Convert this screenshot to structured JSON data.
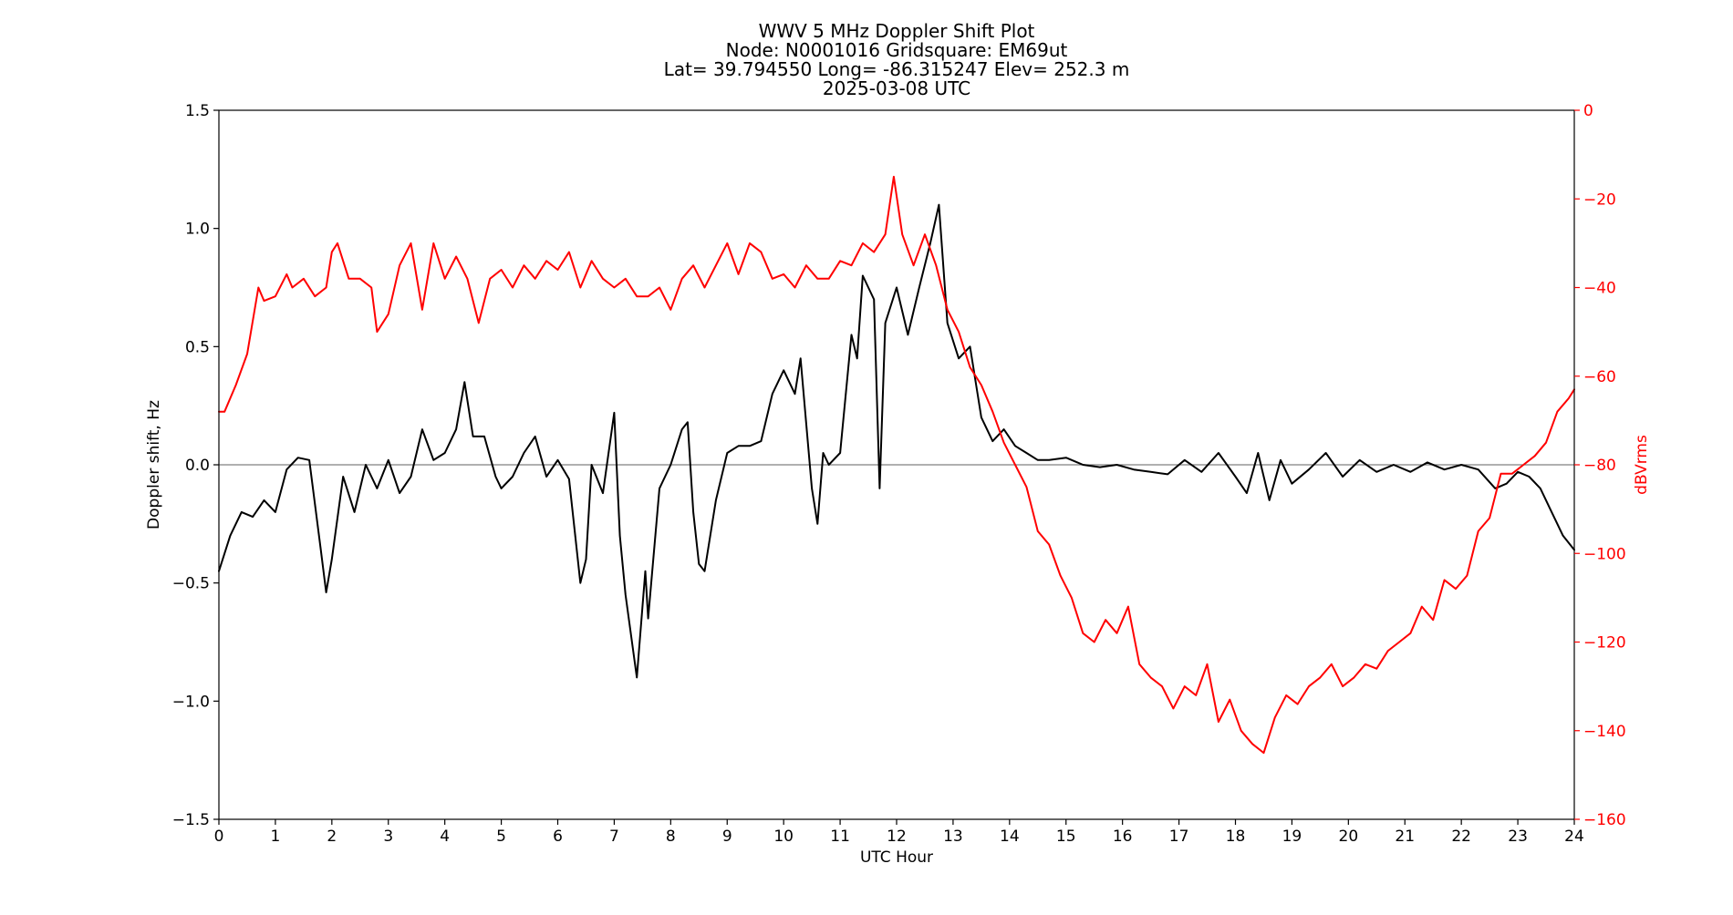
{
  "chart_data": {
    "type": "line",
    "title_lines": [
      "WWV 5 MHz Doppler Shift Plot",
      "Node:  N0001016     Gridsquare:  EM69ut",
      "Lat= 39.794550    Long= -86.315247    Elev= 252.3 m",
      "2025-03-08  UTC"
    ],
    "xlabel": "UTC Hour",
    "ylabel_left": "Doppler shift, Hz",
    "ylabel_right": "dBVrms",
    "xlim": [
      0,
      24
    ],
    "ylim_left": [
      -1.5,
      1.5
    ],
    "ylim_right": [
      -160,
      0
    ],
    "xticks": [
      "0",
      "1",
      "2",
      "3",
      "4",
      "5",
      "6",
      "7",
      "8",
      "9",
      "10",
      "11",
      "12",
      "13",
      "14",
      "15",
      "16",
      "17",
      "18",
      "19",
      "20",
      "21",
      "22",
      "23",
      "24"
    ],
    "yticks_left": [
      "1.5",
      "1.0",
      "0.5",
      "0.0",
      "−0.5",
      "−1.0",
      "−1.5"
    ],
    "yticks_right": [
      "0",
      "−20",
      "−40",
      "−60",
      "−80",
      "−100",
      "−120",
      "−140",
      "−160"
    ],
    "colors": {
      "doppler": "#000000",
      "power": "#ff0000",
      "zero_line": "#808080",
      "axis": "#000000"
    },
    "series": [
      {
        "axis": "left",
        "color": "#000000",
        "x": [
          0,
          0.2,
          0.4,
          0.6,
          0.8,
          1.0,
          1.2,
          1.4,
          1.6,
          1.8,
          1.9,
          2.0,
          2.2,
          2.4,
          2.6,
          2.8,
          3.0,
          3.2,
          3.4,
          3.6,
          3.8,
          4.0,
          4.2,
          4.35,
          4.5,
          4.7,
          4.9,
          5.0,
          5.2,
          5.4,
          5.6,
          5.8,
          6.0,
          6.2,
          6.4,
          6.5,
          6.6,
          6.8,
          7.0,
          7.1,
          7.2,
          7.4,
          7.5,
          7.55,
          7.6,
          7.8,
          8.0,
          8.2,
          8.3,
          8.4,
          8.5,
          8.6,
          8.8,
          9.0,
          9.2,
          9.4,
          9.6,
          9.7,
          9.8,
          10.0,
          10.2,
          10.3,
          10.5,
          10.6,
          10.7,
          10.8,
          11.0,
          11.2,
          11.3,
          11.4,
          11.6,
          11.7,
          11.8,
          12.0,
          12.2,
          12.4,
          12.6,
          12.75,
          12.9,
          13.1,
          13.3,
          13.5,
          13.7,
          13.9,
          14.1,
          14.3,
          14.5,
          14.7,
          15.0,
          15.3,
          15.6,
          15.9,
          16.2,
          16.5,
          16.8,
          17.1,
          17.4,
          17.7,
          18.0,
          18.2,
          18.4,
          18.6,
          18.8,
          19.0,
          19.3,
          19.6,
          19.9,
          20.2,
          20.5,
          20.8,
          21.1,
          21.4,
          21.7,
          22.0,
          22.3,
          22.6,
          22.8,
          23.0,
          23.2,
          23.4,
          23.6,
          23.8,
          24.0
        ],
        "y": [
          -0.45,
          -0.3,
          -0.2,
          -0.22,
          -0.15,
          -0.2,
          -0.02,
          0.03,
          0.02,
          -0.35,
          -0.54,
          -0.4,
          -0.05,
          -0.2,
          0.0,
          -0.1,
          0.02,
          -0.12,
          -0.05,
          0.15,
          0.02,
          0.05,
          0.15,
          0.35,
          0.12,
          0.12,
          -0.05,
          -0.1,
          -0.05,
          0.05,
          0.12,
          -0.05,
          0.02,
          -0.06,
          -0.5,
          -0.4,
          0.0,
          -0.12,
          0.22,
          -0.3,
          -0.55,
          -0.9,
          -0.6,
          -0.45,
          -0.65,
          -0.1,
          0.0,
          0.15,
          0.18,
          -0.2,
          -0.42,
          -0.45,
          -0.15,
          0.05,
          0.08,
          0.08,
          0.1,
          0.2,
          0.3,
          0.4,
          0.3,
          0.45,
          -0.1,
          -0.25,
          0.05,
          0.0,
          0.05,
          0.55,
          0.45,
          0.8,
          0.7,
          -0.1,
          0.6,
          0.75,
          0.55,
          0.75,
          0.94,
          1.1,
          0.6,
          0.45,
          0.5,
          0.2,
          0.1,
          0.15,
          0.08,
          0.05,
          0.02,
          0.02,
          0.03,
          0.0,
          -0.01,
          0.0,
          -0.02,
          -0.03,
          -0.04,
          0.02,
          -0.03,
          0.05,
          -0.05,
          -0.12,
          0.05,
          -0.15,
          0.02,
          -0.08,
          -0.02,
          0.05,
          -0.05,
          0.02,
          -0.03,
          0.0,
          -0.03,
          0.01,
          -0.02,
          0.0,
          -0.02,
          -0.1,
          -0.08,
          -0.03,
          -0.05,
          -0.1,
          -0.2,
          -0.3,
          -0.36
        ]
      },
      {
        "axis": "right",
        "color": "#ff0000",
        "x": [
          0,
          0.1,
          0.3,
          0.5,
          0.7,
          0.8,
          1.0,
          1.2,
          1.3,
          1.5,
          1.7,
          1.9,
          2.0,
          2.1,
          2.3,
          2.5,
          2.7,
          2.8,
          3.0,
          3.2,
          3.4,
          3.6,
          3.8,
          4.0,
          4.2,
          4.4,
          4.6,
          4.8,
          5.0,
          5.2,
          5.4,
          5.6,
          5.8,
          6.0,
          6.2,
          6.4,
          6.6,
          6.8,
          7.0,
          7.2,
          7.4,
          7.6,
          7.8,
          8.0,
          8.2,
          8.4,
          8.6,
          8.8,
          9.0,
          9.2,
          9.4,
          9.6,
          9.8,
          10.0,
          10.2,
          10.4,
          10.6,
          10.8,
          11.0,
          11.2,
          11.4,
          11.6,
          11.8,
          11.95,
          12.1,
          12.3,
          12.5,
          12.7,
          12.9,
          13.1,
          13.3,
          13.5,
          13.7,
          13.9,
          14.1,
          14.3,
          14.5,
          14.7,
          14.9,
          15.1,
          15.3,
          15.5,
          15.7,
          15.9,
          16.1,
          16.3,
          16.5,
          16.7,
          16.9,
          17.1,
          17.3,
          17.5,
          17.7,
          17.9,
          18.1,
          18.3,
          18.5,
          18.7,
          18.9,
          19.1,
          19.3,
          19.5,
          19.7,
          19.9,
          20.1,
          20.3,
          20.5,
          20.7,
          20.9,
          21.1,
          21.3,
          21.5,
          21.7,
          21.9,
          22.1,
          22.3,
          22.5,
          22.7,
          22.9,
          23.1,
          23.3,
          23.5,
          23.7,
          23.9,
          24.0
        ],
        "y": [
          -68,
          -68,
          -62,
          -55,
          -40,
          -43,
          -42,
          -37,
          -40,
          -38,
          -42,
          -40,
          -32,
          -30,
          -38,
          -38,
          -40,
          -50,
          -46,
          -35,
          -30,
          -45,
          -30,
          -38,
          -33,
          -38,
          -48,
          -38,
          -36,
          -40,
          -35,
          -38,
          -34,
          -36,
          -32,
          -40,
          -34,
          -38,
          -40,
          -38,
          -42,
          -42,
          -40,
          -45,
          -38,
          -35,
          -40,
          -35,
          -30,
          -37,
          -30,
          -32,
          -38,
          -37,
          -40,
          -35,
          -38,
          -38,
          -34,
          -35,
          -30,
          -32,
          -28,
          -15,
          -28,
          -35,
          -28,
          -35,
          -45,
          -50,
          -58,
          -62,
          -68,
          -75,
          -80,
          -85,
          -95,
          -98,
          -105,
          -110,
          -118,
          -120,
          -115,
          -118,
          -112,
          -125,
          -128,
          -130,
          -135,
          -130,
          -132,
          -125,
          -138,
          -133,
          -140,
          -143,
          -145,
          -137,
          -132,
          -134,
          -130,
          -128,
          -125,
          -130,
          -128,
          -125,
          -126,
          -122,
          -120,
          -118,
          -112,
          -115,
          -106,
          -108,
          -105,
          -95,
          -92,
          -82,
          -82,
          -80,
          -78,
          -75,
          -68,
          -65,
          -63
        ]
      }
    ],
    "zero_line": 0.0,
    "grid": false,
    "legend": "none"
  }
}
